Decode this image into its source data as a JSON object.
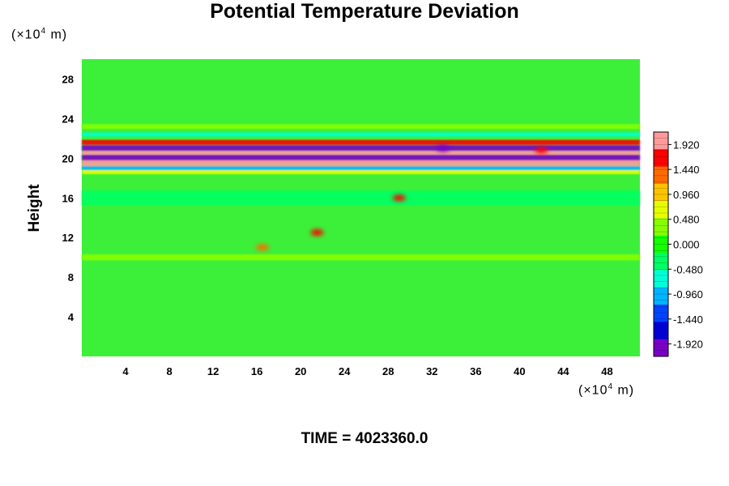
{
  "chart_data": {
    "type": "heatmap",
    "title": "Potential Temperature Deviation",
    "ylabel": "Height",
    "x_unit": {
      "prefix": "(×10",
      "exp": "4",
      "suffix": " m)"
    },
    "y_unit": {
      "prefix": "(×10",
      "exp": "4",
      "suffix": " m)"
    },
    "time_label": "TIME = 4023360.0",
    "xlim": [
      0,
      51
    ],
    "ylim": [
      0,
      30
    ],
    "x_ticks": [
      4,
      8,
      12,
      16,
      20,
      24,
      28,
      32,
      36,
      40,
      44,
      48
    ],
    "y_ticks": [
      4,
      8,
      12,
      16,
      20,
      24,
      28
    ],
    "colorbar": {
      "range": [
        -2.16,
        2.16
      ],
      "tick_values": [
        1.92,
        1.44,
        0.96,
        0.48,
        0.0,
        -0.48,
        -0.96,
        -1.44,
        -1.92
      ],
      "tick_labels": [
        "1.920",
        "1.440",
        "0.960",
        "0.480",
        "0.000",
        "-0.480",
        "-0.960",
        "-1.440",
        "-1.920"
      ],
      "colors": [
        "#ff9a9a",
        "#ff0000",
        "#ff6a00",
        "#ffc400",
        "#e6ff00",
        "#86ff00",
        "#14ff00",
        "#00ff64",
        "#00ffd8",
        "#00b4ff",
        "#0044ff",
        "#0000d4",
        "#7a00c8"
      ]
    },
    "background_color": "#3cf03a",
    "features": [
      {
        "type": "band",
        "y": 21.6,
        "thickness": 0.5,
        "value": 1.5,
        "x_range": [
          0,
          51
        ]
      },
      {
        "type": "band",
        "y": 21.0,
        "thickness": 0.6,
        "value": -1.9,
        "x_range": [
          0,
          51
        ]
      },
      {
        "type": "band",
        "y": 20.5,
        "thickness": 0.5,
        "value": 1.9,
        "x_range": [
          0,
          51
        ]
      },
      {
        "type": "band",
        "y": 20.0,
        "thickness": 0.7,
        "value": -1.9,
        "x_range": [
          0,
          51
        ]
      },
      {
        "type": "band",
        "y": 19.5,
        "thickness": 0.6,
        "value": 2.1,
        "x_range": [
          0,
          51
        ]
      },
      {
        "type": "band",
        "y": 19.0,
        "thickness": 0.4,
        "value": -1.0,
        "x_range": [
          0,
          51
        ]
      },
      {
        "type": "band",
        "y": 18.6,
        "thickness": 0.4,
        "value": 0.6,
        "x_range": [
          0,
          51
        ]
      },
      {
        "type": "band",
        "y": 22.4,
        "thickness": 0.4,
        "value": -0.6,
        "x_range": [
          0,
          51
        ]
      },
      {
        "type": "band",
        "y": 23.2,
        "thickness": 0.5,
        "value": 0.2,
        "x_range": [
          0,
          51
        ]
      },
      {
        "type": "band",
        "y": 16.0,
        "thickness": 1.5,
        "value": -0.4,
        "x_range": [
          0,
          51
        ]
      },
      {
        "type": "band",
        "y": 10.0,
        "thickness": 0.6,
        "value": 0.3,
        "x_range": [
          0,
          51
        ]
      },
      {
        "type": "blob",
        "x": 29.0,
        "y": 16.0,
        "value": 1.8
      },
      {
        "type": "blob",
        "x": 21.5,
        "y": 12.5,
        "value": 1.6
      },
      {
        "type": "blob",
        "x": 16.5,
        "y": 11.0,
        "value": 1.4
      },
      {
        "type": "blob",
        "x": 33.0,
        "y": 21.0,
        "value": -1.9
      },
      {
        "type": "blob",
        "x": 42.0,
        "y": 20.8,
        "value": 1.8
      }
    ]
  }
}
